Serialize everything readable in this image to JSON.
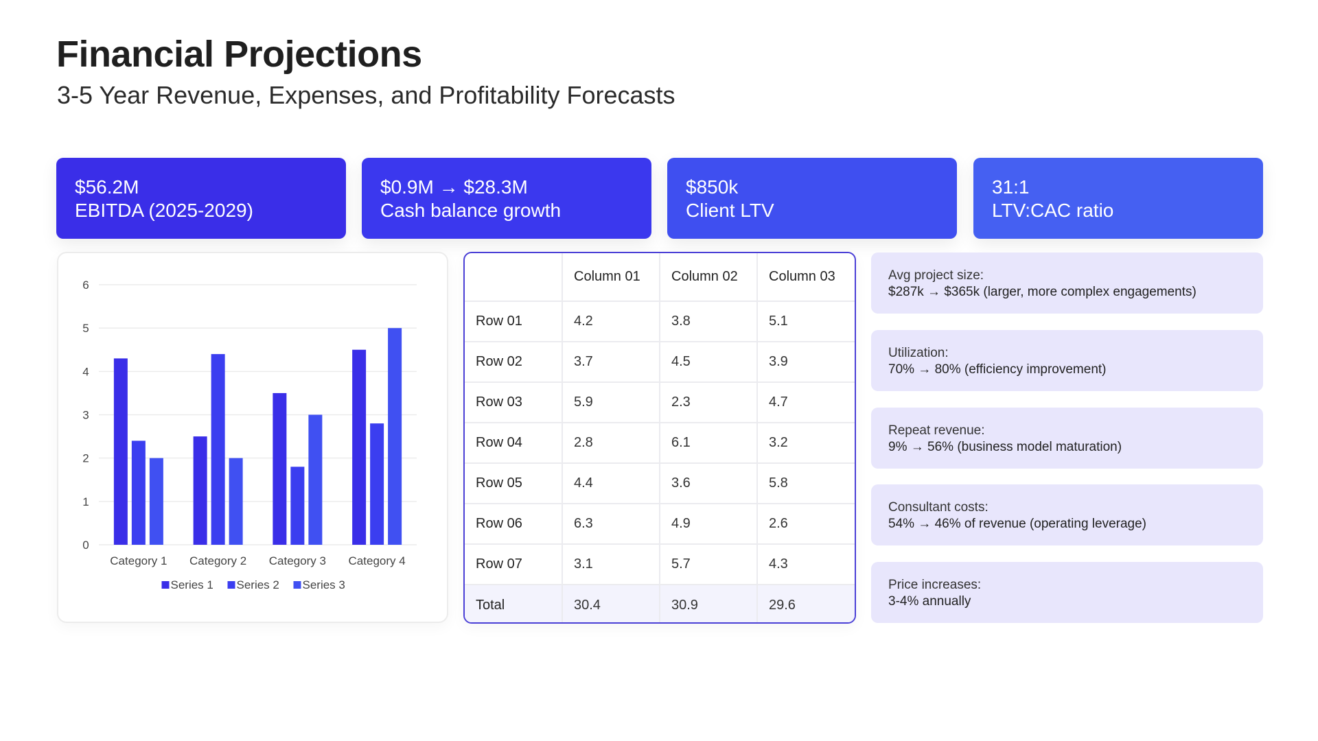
{
  "header": {
    "title": "Financial Projections",
    "subtitle": "3-5 Year Revenue, Expenses, and Profitability Forecasts"
  },
  "kpis": [
    {
      "value": "$56.2M",
      "label": "EBITDA (2025-2029)",
      "color": "#3a2ee8"
    },
    {
      "value": "$0.9M → $28.3M",
      "label": "Cash balance growth",
      "color": "#3b38ee"
    },
    {
      "value": "$850k",
      "label": "Client LTV",
      "color": "#3f4ff0"
    },
    {
      "value": "31:1",
      "label": "LTV:CAC ratio",
      "color": "#4560f2"
    }
  ],
  "chart_data": {
    "type": "bar",
    "title": "",
    "xlabel": "",
    "ylabel": "",
    "categories": [
      "Category 1",
      "Category 2",
      "Category 3",
      "Category 4"
    ],
    "series": [
      {
        "name": "Series 1",
        "values": [
          4.3,
          2.5,
          3.5,
          4.5
        ],
        "color": "#3a2ee8"
      },
      {
        "name": "Series 2",
        "values": [
          2.4,
          4.4,
          1.8,
          2.8
        ],
        "color": "#3b3ef0"
      },
      {
        "name": "Series 3",
        "values": [
          2.0,
          2.0,
          3.0,
          5.0
        ],
        "color": "#4050f2"
      }
    ],
    "ylim": [
      0,
      6
    ],
    "yticks": [
      "0",
      "1",
      "2",
      "3",
      "4",
      "5",
      "6"
    ],
    "grid": true,
    "legend": "bottom"
  },
  "table": {
    "columns": [
      "",
      "Column 01",
      "Column 02",
      "Column 03"
    ],
    "rows": [
      {
        "label": "Row 01",
        "values": [
          "4.2",
          "3.8",
          "5.1"
        ]
      },
      {
        "label": "Row 02",
        "values": [
          "3.7",
          "4.5",
          "3.9"
        ]
      },
      {
        "label": "Row 03",
        "values": [
          "5.9",
          "2.3",
          "4.7"
        ]
      },
      {
        "label": "Row 04",
        "values": [
          "2.8",
          "6.1",
          "3.2"
        ]
      },
      {
        "label": "Row 05",
        "values": [
          "4.4",
          "3.6",
          "5.8"
        ]
      },
      {
        "label": "Row 06",
        "values": [
          "6.3",
          "4.9",
          "2.6"
        ]
      },
      {
        "label": "Row 07",
        "values": [
          "3.1",
          "5.7",
          "4.3"
        ]
      }
    ],
    "total": {
      "label": "Total",
      "values": [
        "30.4",
        "30.9",
        "29.6"
      ]
    }
  },
  "info_cards": [
    {
      "label": "Avg project size:",
      "value": "$287k → $365k (larger, more complex engagements)"
    },
    {
      "label": "Utilization:",
      "value": "70% → 80% (efficiency improvement)"
    },
    {
      "label": "Repeat revenue:",
      "value": "9% → 56% (business model maturation)"
    },
    {
      "label": "Consultant costs:",
      "value": "54% → 46% of revenue (operating leverage)"
    },
    {
      "label": "Price increases:",
      "value": "3-4% annually"
    }
  ]
}
